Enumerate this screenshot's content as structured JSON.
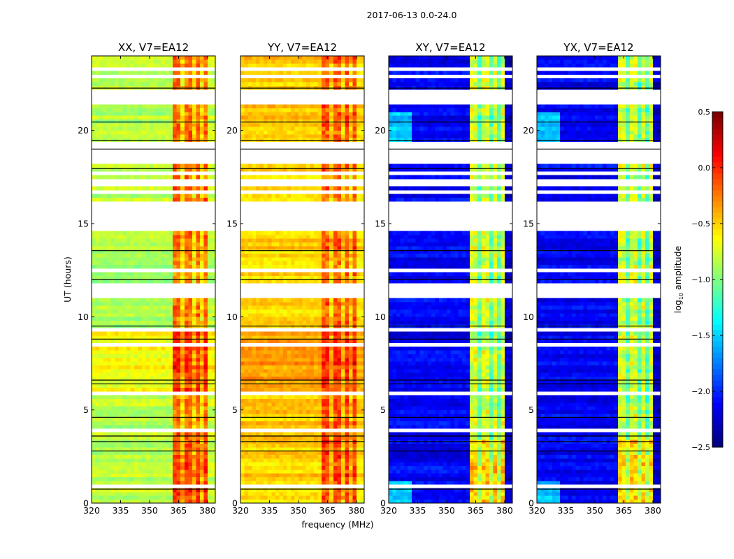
{
  "chart_data": {
    "type": "heatmap",
    "title": "2017-06-13 0.0-24.0",
    "xlabel": "frequency (MHz)",
    "ylabel": "UT (hours)",
    "xlim": [
      320,
      384
    ],
    "ylim": [
      0,
      24
    ],
    "xticks": [
      320,
      335,
      350,
      365,
      380
    ],
    "yticks": [
      0,
      5,
      10,
      15,
      20
    ],
    "colorbar": {
      "label_prefix": "log",
      "label_sub": "10",
      "label_suffix": " amplitude",
      "range": [
        -2.5,
        0.5
      ],
      "ticks": [
        "0.5",
        "0.0",
        "−0.5",
        "−1.0",
        "−1.5",
        "−2.0",
        "−2.5"
      ],
      "tick_values": [
        0.5,
        0.0,
        -0.5,
        -1.0,
        -1.5,
        -2.0,
        -2.5
      ],
      "colormap": "jet"
    },
    "flagged_hours": [
      [
        21.45,
        22.27
      ],
      [
        18.3,
        19.4
      ],
      [
        14.7,
        16.2
      ],
      [
        11.0,
        11.9
      ],
      [
        17.0,
        17.35
      ],
      [
        23.3,
        23.5
      ],
      [
        22.75,
        22.95
      ],
      [
        17.7,
        17.85
      ],
      [
        16.6,
        16.75
      ],
      [
        9.3,
        9.45
      ],
      [
        3.9,
        4.0
      ],
      [
        0.85,
        0.95
      ],
      [
        0.45,
        0.5
      ],
      [
        13.75,
        13.85
      ],
      [
        12.45,
        12.55
      ],
      [
        20.6,
        20.7
      ],
      [
        19.75,
        19.85
      ],
      [
        5.85,
        5.95
      ],
      [
        8.5,
        8.6
      ],
      [
        7.0,
        7.05
      ],
      [
        2.2,
        2.25
      ]
    ],
    "black_lines_hours": [
      22.27,
      19.0,
      17.95,
      13.55,
      12.0,
      9.5,
      8.8,
      6.6,
      6.4,
      4.6,
      3.6,
      3.3,
      2.8,
      0.75,
      20.45,
      19.45
    ],
    "panels": [
      {
        "title": "XX, V7=EA12",
        "base": -0.85,
        "band": -0.2,
        "edge": -0.8,
        "early_boost": 0.2,
        "night_band": 0.15
      },
      {
        "title": "YY, V7=EA12",
        "base": -0.5,
        "band": -0.15,
        "edge": -0.55,
        "early_boost": 0.15,
        "night_band": 0.1
      },
      {
        "title": "XY, V7=EA12",
        "base": -2.15,
        "band": -0.75,
        "edge": -2.3,
        "early_boost": 0.0,
        "night_band": 0.25
      },
      {
        "title": "YX, V7=EA12",
        "base": -2.15,
        "band": -0.75,
        "edge": -2.3,
        "early_boost": 0.0,
        "night_band": 0.25
      }
    ],
    "band_mhz": [
      362,
      381
    ],
    "band_gaps_mhz": [
      367.5,
      372.5,
      377.5
    ]
  }
}
